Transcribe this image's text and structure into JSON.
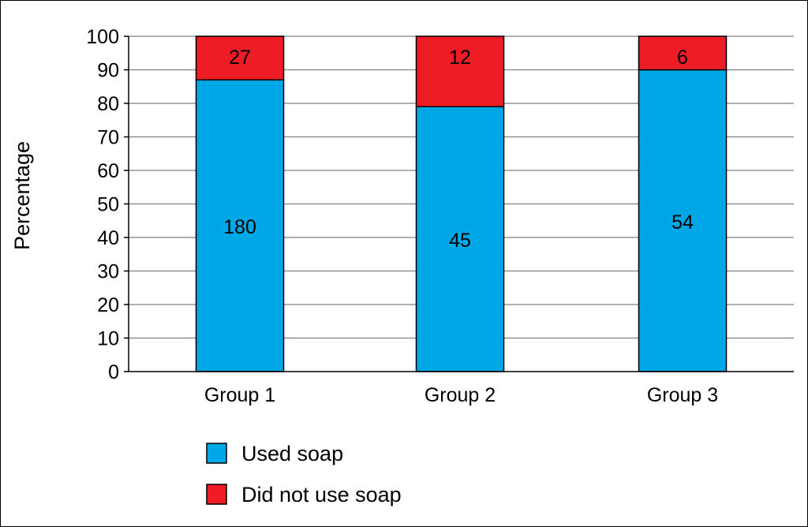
{
  "chart_data": {
    "type": "bar",
    "stacked": true,
    "ylabel": "Percentage",
    "xlabel": "",
    "ylim": [
      0,
      100
    ],
    "yticks": [
      0,
      10,
      20,
      30,
      40,
      50,
      60,
      70,
      80,
      90,
      100
    ],
    "grid": true,
    "legend_position": "bottom-center",
    "categories": [
      "Group 1",
      "Group 2",
      "Group 3"
    ],
    "series": [
      {
        "name": "Used soap",
        "color": "#00A7E6",
        "values": [
          87,
          79,
          90
        ],
        "data_labels": [
          "180",
          "45",
          "54"
        ]
      },
      {
        "name": "Did not use soap",
        "color": "#EE1C24",
        "values": [
          13,
          21,
          10
        ],
        "data_labels": [
          "27",
          "12",
          "6"
        ]
      }
    ]
  }
}
